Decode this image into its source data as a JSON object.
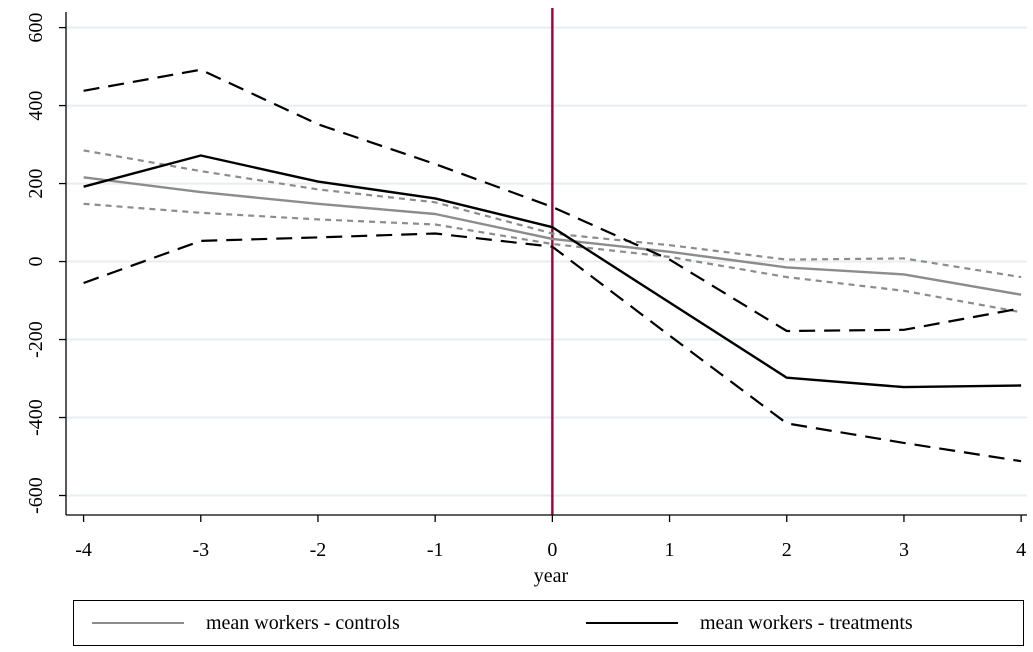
{
  "chart_data": {
    "type": "line",
    "xlabel": "year",
    "ylabel": "",
    "x": [
      -4,
      -3,
      -2,
      -1,
      0,
      1,
      2,
      3,
      4
    ],
    "xticks": [
      "-4",
      "-3",
      "-2",
      "-1",
      "0",
      "1",
      "2",
      "3",
      "4"
    ],
    "yticks": [
      "-600",
      "-400",
      "-200",
      "0",
      "200",
      "400",
      "600"
    ],
    "ylim": [
      -650,
      640
    ],
    "xlim": [
      -4.15,
      4.05
    ],
    "grid": true,
    "vertical_line": {
      "x": 0,
      "color": "#a0003a"
    },
    "legend_position": "bottom",
    "series": [
      {
        "name": "mean workers - controls",
        "role": "mean",
        "color": "#8c8c8c",
        "style": "solid",
        "values": [
          216,
          178,
          148,
          122,
          58,
          25,
          -15,
          -33,
          -85
        ]
      },
      {
        "name": "",
        "role": "ci-upper",
        "color": "#8c8c8c",
        "style": "dotted",
        "values": [
          285,
          232,
          185,
          152,
          72,
          42,
          5,
          8,
          -40
        ]
      },
      {
        "name": "",
        "role": "ci-lower",
        "color": "#8c8c8c",
        "style": "dotted",
        "values": [
          148,
          125,
          108,
          95,
          45,
          12,
          -40,
          -75,
          -130
        ]
      },
      {
        "name": "mean workers - treatments",
        "role": "mean",
        "color": "#000000",
        "style": "solid",
        "values": [
          192,
          272,
          205,
          162,
          88,
          -105,
          -298,
          -322,
          -318
        ]
      },
      {
        "name": "",
        "role": "ci-upper",
        "color": "#000000",
        "style": "dashed",
        "values": [
          438,
          492,
          352,
          250,
          140,
          5,
          -178,
          -175,
          -120
        ]
      },
      {
        "name": "",
        "role": "ci-lower",
        "color": "#000000",
        "style": "dashed",
        "values": [
          -55,
          53,
          62,
          72,
          38,
          -190,
          -415,
          -465,
          -512
        ]
      }
    ]
  },
  "legend": {
    "controls_label": "mean workers - controls",
    "treatments_label": "mean workers - treatments"
  }
}
